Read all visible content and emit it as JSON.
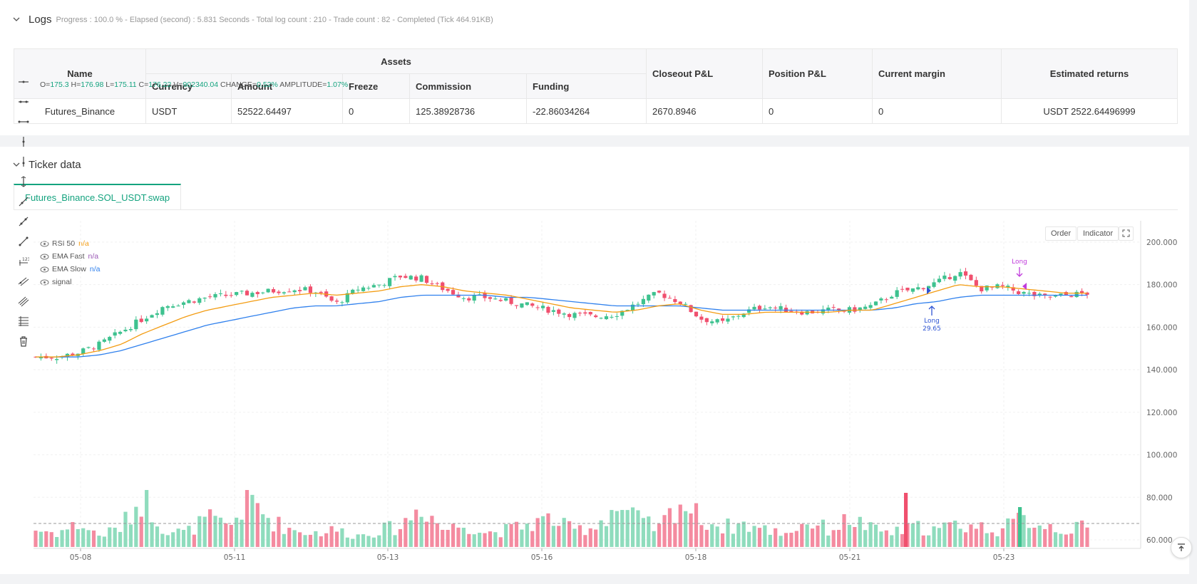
{
  "logs": {
    "title": "Logs",
    "status": "Progress : 100.0 % - Elapsed (second) : 5.831 Seconds - Total log count : 210 - Trade count : 82 - Completed (Tick 464.91KB)",
    "table": {
      "headers": {
        "name": "Name",
        "assets": "Assets",
        "currency": "Currency",
        "amount": "Amount",
        "freeze": "Freeze",
        "commission": "Commission",
        "funding": "Funding",
        "closeout_pl": "Closeout P&L",
        "position_pl": "Position P&L",
        "current_margin": "Current margin",
        "estimated_returns": "Estimated returns"
      },
      "row": {
        "name": "Futures_Binance",
        "currency": "USDT",
        "amount": "52522.64497",
        "freeze": "0",
        "commission": "125.38928736",
        "funding": "-22.86034264",
        "closeout_pl": "2670.8946",
        "position_pl": "0",
        "current_margin": "0",
        "estimated_returns": "USDT 2522.64496999"
      }
    }
  },
  "ticker": {
    "title": "Ticker data",
    "tab_label": "Futures_Binance.SOL_USDT.swap",
    "ohlc": {
      "o_label": "O=",
      "o": "175.3",
      "h_label": "H=",
      "h": "176.98",
      "l_label": "L=",
      "l": "175.11",
      "c_label": "C=",
      "c": "176.22",
      "v_label": "V=",
      "v": "902340.04",
      "change_label": "CHANGE=",
      "change": "0.52%",
      "amplitude_label": "AMPLITUDE=",
      "amplitude": "1.07%"
    },
    "legend": [
      {
        "name": "RSI 50",
        "value": "n/a",
        "color": "#f39c12"
      },
      {
        "name": "EMA Fast",
        "value": "n/a",
        "color": "#9b59b6"
      },
      {
        "name": "EMA Slow",
        "value": "n/a",
        "color": "#2f80ed"
      },
      {
        "name": "signal",
        "value": "",
        "color": "#555555"
      }
    ],
    "buttons": {
      "order": "Order",
      "indicator": "Indicator"
    },
    "annotations": {
      "long_top": "Long",
      "long_bottom": "Long",
      "long_bottom_value": "29.65"
    }
  },
  "chart_data": {
    "type": "candlestick",
    "symbol": "Futures_Binance.SOL_USDT.swap",
    "x_ticks": [
      "05-08",
      "05-11",
      "05-13",
      "05-16",
      "05-18",
      "05-21",
      "05-23"
    ],
    "y_ticks": [
      60,
      80,
      100,
      120,
      140,
      160,
      180,
      200
    ],
    "y_tick_labels": [
      "60.000",
      "80.000",
      "100.000",
      "120.000",
      "140.000",
      "160.000",
      "180.000",
      "200.000"
    ],
    "ylim": [
      56,
      210
    ],
    "close_path": [
      146,
      146,
      148,
      152,
      158,
      164,
      170,
      172,
      174,
      175,
      176,
      177,
      178,
      177,
      171,
      178,
      180,
      184,
      183,
      178,
      174,
      174,
      172,
      170,
      168,
      166,
      165,
      166,
      171,
      176,
      172,
      164,
      162,
      167,
      170,
      168,
      167,
      168,
      168,
      170,
      176,
      178,
      181,
      186,
      178,
      179,
      176,
      174,
      175,
      176
    ],
    "ema_fast": [
      146,
      146,
      147,
      149,
      152,
      157,
      161,
      165,
      168,
      170,
      172,
      174,
      175,
      176,
      175,
      176,
      177,
      179,
      180,
      179,
      177,
      176,
      175,
      173,
      171,
      169,
      168,
      167,
      168,
      170,
      171,
      168,
      166,
      166,
      167,
      167,
      167,
      167,
      168,
      168,
      171,
      174,
      177,
      180,
      179,
      179,
      178,
      177,
      176,
      176
    ],
    "ema_slow": [
      146,
      146,
      146,
      147,
      149,
      152,
      155,
      158,
      161,
      163,
      165,
      167,
      169,
      170,
      170,
      171,
      172,
      174,
      175,
      175,
      175,
      175,
      174,
      174,
      173,
      172,
      171,
      170,
      170,
      170,
      170,
      169,
      168,
      168,
      168,
      168,
      168,
      168,
      168,
      168,
      169,
      171,
      172,
      174,
      175,
      175,
      175,
      175,
      175,
      175
    ],
    "volume_relative": [
      0.3,
      0.25,
      0.4,
      0.2,
      0.35,
      0.9,
      0.3,
      0.25,
      0.5,
      0.35,
      0.85,
      0.45,
      0.3,
      0.25,
      0.3,
      0.2,
      0.3,
      0.35,
      0.75,
      0.3,
      0.4,
      0.25,
      0.3,
      0.4,
      0.5,
      0.3,
      0.35,
      0.7,
      0.5,
      0.3,
      0.8,
      0.5,
      0.35,
      0.4,
      0.3,
      0.25,
      0.45,
      0.3,
      0.5,
      0.3,
      0.25,
      0.35,
      0.3,
      0.4,
      0.35,
      0.3,
      0.5,
      0.4,
      0.3,
      0.35
    ],
    "rsi_threshold_level": 50,
    "markers": [
      {
        "label": "Long",
        "x_index": 44,
        "position": "above"
      },
      {
        "label": "Long 29.65",
        "x_index": 40,
        "position": "below"
      }
    ],
    "grid": true
  }
}
